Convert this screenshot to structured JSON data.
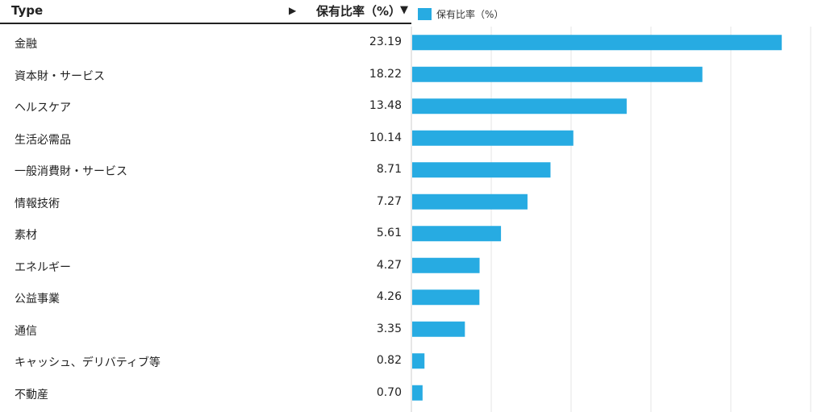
{
  "header": {
    "type_label": "Type",
    "expand_arrow": "▶",
    "value_label": "保有比率（%）",
    "sort_arrow": "▼"
  },
  "legend": {
    "label": "保有比率（%）"
  },
  "colors": {
    "bar": "#27abe2",
    "grid": "#e6e6e6",
    "axis": "#cccccc"
  },
  "rows": [
    {
      "label": "金融",
      "value": "23.19"
    },
    {
      "label": "資本財・サービス",
      "value": "18.22"
    },
    {
      "label": "ヘルスケア",
      "value": "13.48"
    },
    {
      "label": "生活必需品",
      "value": "10.14"
    },
    {
      "label": "一般消費財・サービス",
      "value": "8.71"
    },
    {
      "label": "情報技術",
      "value": "7.27"
    },
    {
      "label": "素材",
      "value": "5.61"
    },
    {
      "label": "エネルギー",
      "value": "4.27"
    },
    {
      "label": "公益事業",
      "value": "4.26"
    },
    {
      "label": "通信",
      "value": "3.35"
    },
    {
      "label": "キャッシュ、デリバティブ等",
      "value": "0.82"
    },
    {
      "label": "不動産",
      "value": "0.70"
    }
  ],
  "chart_data": {
    "type": "bar",
    "orientation": "horizontal",
    "categories": [
      "金融",
      "資本財・サービス",
      "ヘルスケア",
      "生活必需品",
      "一般消費財・サービス",
      "情報技術",
      "素材",
      "エネルギー",
      "公益事業",
      "通信",
      "キャッシュ、デリバティブ等",
      "不動産"
    ],
    "series": [
      {
        "name": "保有比率（%）",
        "values": [
          23.19,
          18.22,
          13.48,
          10.14,
          8.71,
          7.27,
          5.61,
          4.27,
          4.26,
          3.35,
          0.82,
          0.7
        ]
      }
    ],
    "xlim": [
      0,
      25
    ],
    "grid_step": 5,
    "grid": true,
    "legend": "top-left"
  }
}
